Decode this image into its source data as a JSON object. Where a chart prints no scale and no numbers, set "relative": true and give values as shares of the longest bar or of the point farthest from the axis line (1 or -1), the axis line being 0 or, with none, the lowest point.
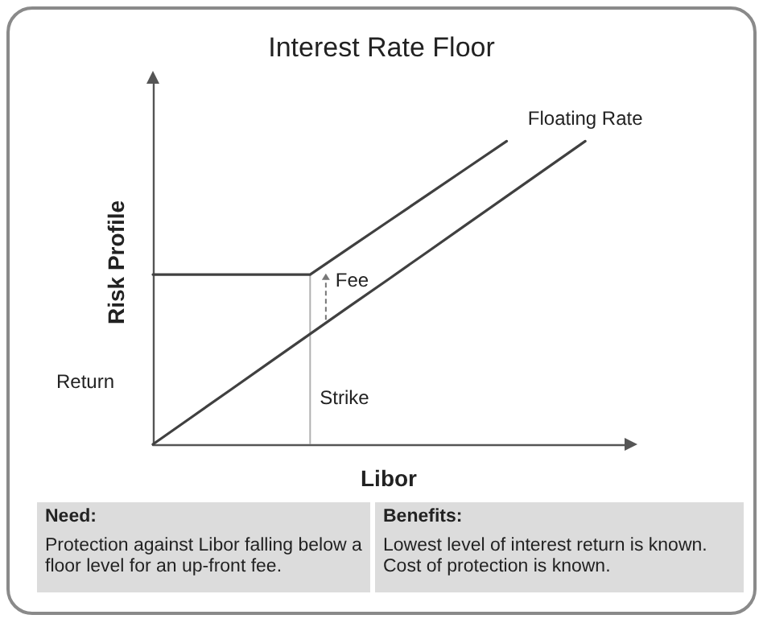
{
  "chart_data": {
    "type": "line",
    "title": "Interest Rate Floor",
    "xlabel": "Libor",
    "ylabel": "Risk Profile",
    "relative": true,
    "categories": [
      null,
      null,
      null,
      null,
      null,
      null,
      null,
      null,
      null,
      null,
      null,
      null,
      null
    ],
    "series": [
      {
        "color": "#404040",
        "values": [
          0.56,
          0.56,
          0.56,
          0.56,
          0.56,
          0.648,
          0.736,
          0.824,
          0.912,
          1.0,
          null,
          null,
          null
        ]
      },
      {
        "name": "Floating Rate",
        "color": "#404040",
        "values": [
          0,
          0.091,
          0.182,
          0.273,
          0.364,
          0.455,
          0.545,
          0.636,
          0.727,
          0.818,
          0.909,
          1.0,
          null
        ]
      }
    ],
    "annotations": [
      "Return",
      "Fee",
      "Need:",
      "Protection against Libor falling below a floor level for an up-front fee.",
      "Benefits:",
      "Lowest level of interest return is known.",
      "Cost of protection is known.",
      "Strike"
    ],
    "grid": false,
    "legend": false,
    "marker": "none",
    "line_style": "solid"
  }
}
